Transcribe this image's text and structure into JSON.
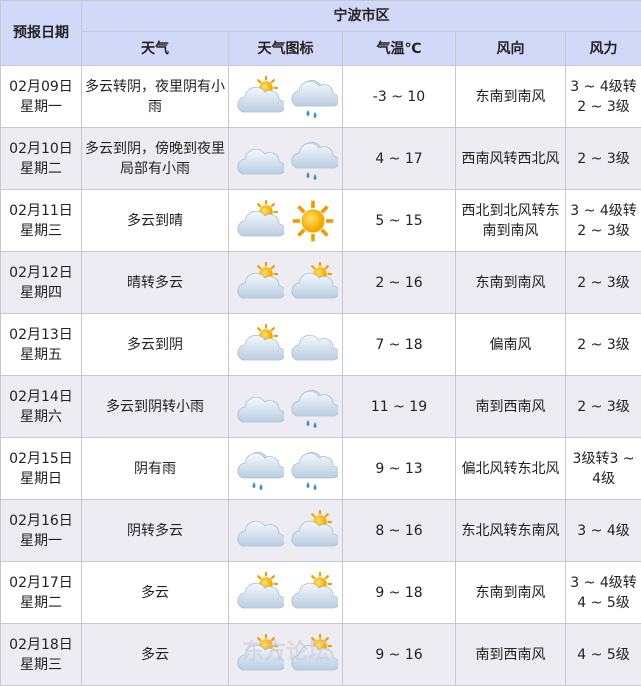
{
  "header": {
    "date_col": "预报日期",
    "region": "宁波市区",
    "cols": [
      "天气",
      "天气图标",
      "气温℃",
      "风向",
      "风力"
    ]
  },
  "rows": [
    {
      "date": "02月09日",
      "weekday": "星期一",
      "weather": "多云转阴，夜里阴有小雨",
      "icons": [
        "partly-cloudy-icon",
        "rain-icon"
      ],
      "temp": "-3 ~ 10",
      "wind_dir": "东南到南风",
      "wind_force": "3 ~ 4级转2 ~ 3级"
    },
    {
      "date": "02月10日",
      "weekday": "星期二",
      "weather": "多云到阴，傍晚到夜里局部有小雨",
      "icons": [
        "cloudy-icon",
        "rain-icon"
      ],
      "temp": "4 ~ 17",
      "wind_dir": "西南风转西北风",
      "wind_force": "2 ~ 3级"
    },
    {
      "date": "02月11日",
      "weekday": "星期三",
      "weather": "多云到晴",
      "icons": [
        "partly-cloudy-icon",
        "sun-icon"
      ],
      "temp": "5 ~ 15",
      "wind_dir": "西北到北风转东南到南风",
      "wind_force": "3 ~ 4级转2 ~ 3级"
    },
    {
      "date": "02月12日",
      "weekday": "星期四",
      "weather": "晴转多云",
      "icons": [
        "partly-cloudy-icon",
        "partly-cloudy-icon"
      ],
      "temp": "2 ~ 16",
      "wind_dir": "东南到南风",
      "wind_force": "2 ~ 3级"
    },
    {
      "date": "02月13日",
      "weekday": "星期五",
      "weather": "多云到阴",
      "icons": [
        "partly-cloudy-icon",
        "cloudy-icon"
      ],
      "temp": "7 ~ 18",
      "wind_dir": "偏南风",
      "wind_force": "2 ~ 3级"
    },
    {
      "date": "02月14日",
      "weekday": "星期六",
      "weather": "多云到阴转小雨",
      "icons": [
        "cloudy-icon",
        "rain-icon"
      ],
      "temp": "11 ~ 19",
      "wind_dir": "南到西南风",
      "wind_force": "2 ~ 3级"
    },
    {
      "date": "02月15日",
      "weekday": "星期日",
      "weather": "阴有雨",
      "icons": [
        "rain-icon",
        "rain-icon"
      ],
      "temp": "9 ~ 13",
      "wind_dir": "偏北风转东北风",
      "wind_force": "3级转3 ~ 4级"
    },
    {
      "date": "02月16日",
      "weekday": "星期一",
      "weather": "阴转多云",
      "icons": [
        "cloudy-icon",
        "partly-cloudy-icon"
      ],
      "temp": "8 ~ 16",
      "wind_dir": "东北风转东南风",
      "wind_force": "3 ~ 4级"
    },
    {
      "date": "02月17日",
      "weekday": "星期二",
      "weather": "多云",
      "icons": [
        "partly-cloudy-icon",
        "partly-cloudy-icon"
      ],
      "temp": "9 ~ 18",
      "wind_dir": "东南到南风",
      "wind_force": "3 ~ 4级转4 ~ 5级"
    },
    {
      "date": "02月18日",
      "weekday": "星期三",
      "weather": "多云",
      "icons": [
        "partly-cloudy-icon",
        "partly-cloudy-icon"
      ],
      "temp": "9 ~ 16",
      "wind_dir": "南到西南风",
      "wind_force": "4 ~ 5级"
    }
  ],
  "watermark": "东方论坛",
  "colors": {
    "header_bg": "#d2d9f8",
    "alt_row": "#ececf2"
  }
}
